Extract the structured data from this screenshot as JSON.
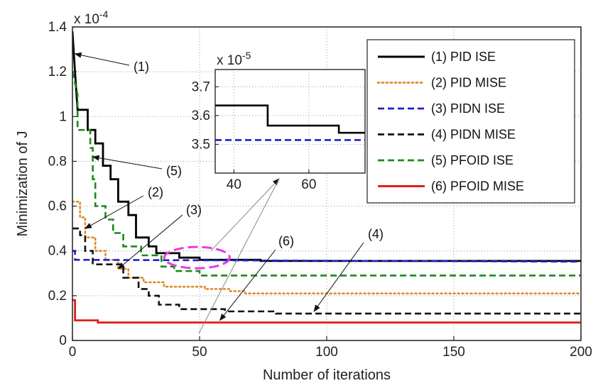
{
  "chart_data": [
    {
      "type": "line",
      "xlabel": "Number of iterations",
      "ylabel": "Minimization of J",
      "scale_label": "x 10-4",
      "xlim": [
        0,
        200
      ],
      "ylim": [
        0,
        1.4
      ],
      "xticks": [
        0,
        50,
        100,
        150,
        200
      ],
      "yticks": [
        0,
        0.2,
        0.4,
        0.6,
        0.8,
        1,
        1.2,
        1.4
      ],
      "xtick_labels": [
        "0",
        "50",
        "100",
        "150",
        "200"
      ],
      "ytick_labels": [
        "0",
        "0.2",
        "0.4",
        "0.6",
        "0.8",
        "1",
        "1.2",
        "1.4"
      ],
      "grid": true,
      "legend_position": "top-right",
      "series": [
        {
          "name": "(1) PID ISE",
          "color": "#000000",
          "dash": "solid",
          "points": [
            [
              0,
              1.38
            ],
            [
              1,
              1.2
            ],
            [
              2,
              1.03
            ],
            [
              6,
              1.03
            ],
            [
              6,
              0.94
            ],
            [
              9,
              0.94
            ],
            [
              9,
              0.88
            ],
            [
              12,
              0.88
            ],
            [
              12,
              0.78
            ],
            [
              15,
              0.78
            ],
            [
              15,
              0.72
            ],
            [
              18,
              0.72
            ],
            [
              18,
              0.62
            ],
            [
              22,
              0.62
            ],
            [
              22,
              0.56
            ],
            [
              25,
              0.56
            ],
            [
              25,
              0.46
            ],
            [
              30,
              0.46
            ],
            [
              30,
              0.42
            ],
            [
              33,
              0.42
            ],
            [
              33,
              0.39
            ],
            [
              42,
              0.39
            ],
            [
              42,
              0.37
            ],
            [
              50,
              0.37
            ],
            [
              50,
              0.36
            ],
            [
              74,
              0.36
            ],
            [
              74,
              0.355
            ],
            [
              200,
              0.355
            ]
          ]
        },
        {
          "name": "(2) PID MISE",
          "color": "#e08a2c",
          "dash": "dotted",
          "points": [
            [
              0,
              0.62
            ],
            [
              3,
              0.62
            ],
            [
              3,
              0.55
            ],
            [
              5,
              0.55
            ],
            [
              5,
              0.46
            ],
            [
              9,
              0.46
            ],
            [
              9,
              0.4
            ],
            [
              13,
              0.4
            ],
            [
              13,
              0.36
            ],
            [
              18,
              0.36
            ],
            [
              18,
              0.32
            ],
            [
              22,
              0.32
            ],
            [
              22,
              0.28
            ],
            [
              28,
              0.28
            ],
            [
              28,
              0.26
            ],
            [
              36,
              0.26
            ],
            [
              36,
              0.24
            ],
            [
              52,
              0.24
            ],
            [
              52,
              0.23
            ],
            [
              62,
              0.23
            ],
            [
              62,
              0.22
            ],
            [
              68,
              0.22
            ],
            [
              68,
              0.21
            ],
            [
              200,
              0.21
            ]
          ]
        },
        {
          "name": "(3) PIDN ISE",
          "color": "#1f1fd0",
          "dash": "dashed",
          "points": [
            [
              0,
              0.4
            ],
            [
              1,
              0.4
            ],
            [
              1,
              0.36
            ],
            [
              200,
              0.352
            ]
          ]
        },
        {
          "name": "(4) PIDN MISE",
          "color": "#111111",
          "dash": "dashed",
          "points": [
            [
              0,
              0.5
            ],
            [
              3,
              0.5
            ],
            [
              3,
              0.47
            ],
            [
              5,
              0.47
            ],
            [
              5,
              0.4
            ],
            [
              8,
              0.4
            ],
            [
              8,
              0.34
            ],
            [
              20,
              0.34
            ],
            [
              20,
              0.28
            ],
            [
              26,
              0.28
            ],
            [
              26,
              0.23
            ],
            [
              30,
              0.23
            ],
            [
              30,
              0.2
            ],
            [
              34,
              0.2
            ],
            [
              34,
              0.16
            ],
            [
              42,
              0.16
            ],
            [
              42,
              0.14
            ],
            [
              60,
              0.14
            ],
            [
              60,
              0.13
            ],
            [
              80,
              0.13
            ],
            [
              80,
              0.12
            ],
            [
              200,
              0.12
            ]
          ]
        },
        {
          "name": "(5) PFOID ISE",
          "color": "#1a8a1a",
          "dash": "dashed",
          "points": [
            [
              0,
              1.2
            ],
            [
              2,
              1.1
            ],
            [
              2,
              0.94
            ],
            [
              7,
              0.94
            ],
            [
              7,
              0.86
            ],
            [
              8,
              0.86
            ],
            [
              8,
              0.72
            ],
            [
              9,
              0.72
            ],
            [
              9,
              0.6
            ],
            [
              13,
              0.6
            ],
            [
              13,
              0.54
            ],
            [
              16,
              0.54
            ],
            [
              16,
              0.48
            ],
            [
              20,
              0.48
            ],
            [
              20,
              0.42
            ],
            [
              27,
              0.42
            ],
            [
              27,
              0.38
            ],
            [
              35,
              0.38
            ],
            [
              35,
              0.33
            ],
            [
              40,
              0.33
            ],
            [
              40,
              0.31
            ],
            [
              50,
              0.31
            ],
            [
              50,
              0.29
            ],
            [
              200,
              0.29
            ]
          ]
        },
        {
          "name": "(6) PFOID MISE",
          "color": "#e0201c",
          "dash": "solid",
          "points": [
            [
              0,
              0.18
            ],
            [
              1,
              0.18
            ],
            [
              1,
              0.09
            ],
            [
              10,
              0.09
            ],
            [
              10,
              0.08
            ],
            [
              200,
              0.08
            ]
          ]
        }
      ],
      "annotations": [
        {
          "label": "(1)",
          "target": [
            1,
            1.28
          ]
        },
        {
          "label": "(2)",
          "target": [
            5,
            0.5
          ]
        },
        {
          "label": "(3)",
          "target": [
            18,
            0.32
          ]
        },
        {
          "label": "(4)",
          "target": [
            95,
            0.13
          ]
        },
        {
          "label": "(5)",
          "target": [
            8,
            0.82
          ]
        },
        {
          "label": "(6)",
          "target": [
            58,
            0.09
          ]
        }
      ],
      "highlight_ellipse": {
        "center": [
          49,
          0.37
        ],
        "color": "#e23ce2"
      },
      "legend_entries": [
        "(1) PID ISE",
        "(2) PID MISE",
        "(3) PIDN ISE",
        "(4) PIDN MISE",
        "(5) PFOID ISE",
        "(6) PFOID MISE"
      ]
    },
    {
      "type": "line",
      "role": "inset",
      "scale_label": "x 10-5",
      "xlim": [
        35,
        75
      ],
      "ylim": [
        3.4,
        3.76
      ],
      "xticks": [
        40,
        60
      ],
      "yticks": [
        3.5,
        3.6,
        3.7
      ],
      "xtick_labels": [
        "40",
        "60"
      ],
      "ytick_labels": [
        "3.5",
        "3.6",
        "3.7"
      ],
      "grid": true,
      "series": [
        {
          "name": "(1) PID ISE",
          "color": "#000000",
          "dash": "solid",
          "points": [
            [
              35,
              3.635
            ],
            [
              49,
              3.635
            ],
            [
              49,
              3.565
            ],
            [
              68,
              3.565
            ],
            [
              68,
              3.54
            ],
            [
              75,
              3.54
            ]
          ]
        },
        {
          "name": "(3) PIDN ISE",
          "color": "#1f1fd0",
          "dash": "dashed",
          "points": [
            [
              35,
              3.515
            ],
            [
              75,
              3.515
            ]
          ]
        }
      ]
    }
  ]
}
